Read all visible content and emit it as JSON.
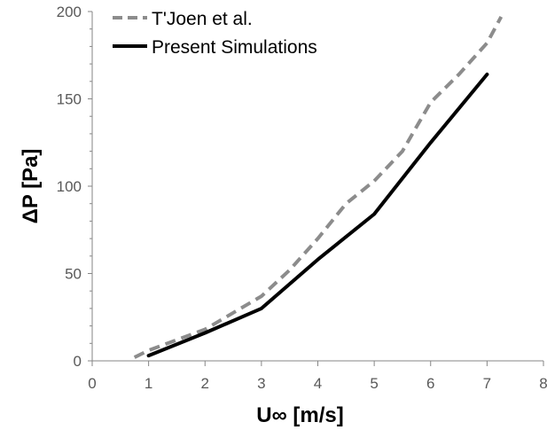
{
  "chart_data": {
    "type": "line",
    "xlabel": "U∞ [m/s]",
    "ylabel": "ΔP [Pa]",
    "xlim": [
      0,
      8
    ],
    "ylim": [
      0,
      200
    ],
    "x_ticks": [
      0,
      1,
      2,
      3,
      4,
      5,
      6,
      7,
      8
    ],
    "y_ticks": [
      0,
      50,
      100,
      150,
      200
    ],
    "grid": false,
    "legend_position": "top-left",
    "series": [
      {
        "name": "T'Joen et al.",
        "style": "dashed",
        "color": "#8c8c8c",
        "x": [
          0.75,
          1.0,
          2.0,
          3.0,
          3.5,
          4.0,
          4.5,
          5.0,
          5.5,
          6.0,
          6.5,
          7.0,
          7.25
        ],
        "y": [
          2,
          6,
          18,
          37,
          52,
          70,
          90,
          103,
          120,
          148,
          164,
          182,
          197
        ]
      },
      {
        "name": "Present Simulations",
        "style": "solid",
        "color": "#000000",
        "x": [
          1.0,
          2.0,
          3.0,
          4.0,
          5.0,
          6.0,
          7.0
        ],
        "y": [
          3,
          16,
          30,
          58,
          84,
          125,
          164
        ]
      }
    ]
  }
}
